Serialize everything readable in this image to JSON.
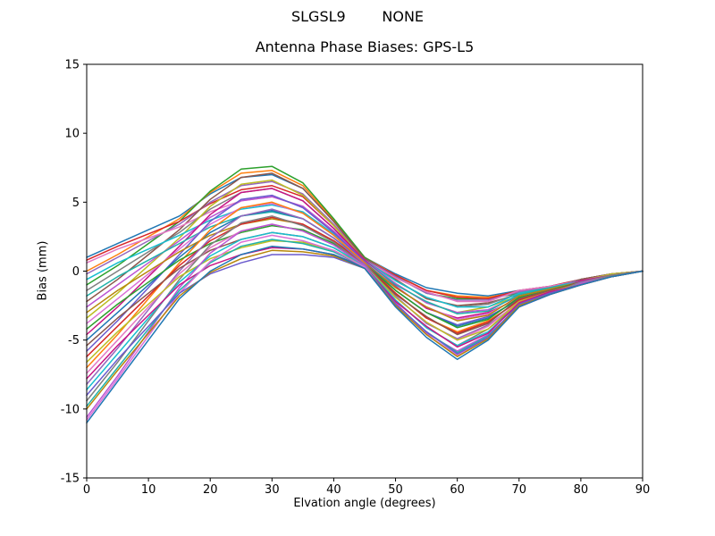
{
  "window": {
    "background": "#ffffff"
  },
  "chart_data": {
    "type": "line",
    "suptitle": "SLGSL9        NONE",
    "title": "Antenna Phase Biases: GPS-L5",
    "xlabel": "Elvation angle (degrees)",
    "ylabel": "Bias (mm)",
    "xlim": [
      0,
      90
    ],
    "ylim": [
      -15,
      15
    ],
    "xticks": [
      0,
      10,
      20,
      30,
      40,
      50,
      60,
      70,
      80,
      90
    ],
    "yticks": [
      -15,
      -10,
      -5,
      0,
      5,
      10,
      15
    ],
    "grid": false,
    "legend": "none",
    "x": [
      0,
      5,
      10,
      15,
      20,
      25,
      30,
      35,
      40,
      45,
      50,
      55,
      60,
      65,
      70,
      75,
      80,
      85,
      90
    ],
    "palette": [
      "#1f77b4",
      "#ff7f0e",
      "#2ca02c",
      "#d62728",
      "#9467bd",
      "#8c564b",
      "#e377c2",
      "#7f7f7f",
      "#bcbd22",
      "#17becf",
      "#ba55d3",
      "#c71585",
      "#20b2aa",
      "#da70d6",
      "#6a5acd",
      "#b8860b"
    ],
    "series": [
      {
        "values": [
          1.0,
          2.0,
          3.0,
          4.0,
          5.6,
          6.8,
          7.0,
          6.0,
          3.6,
          1.0,
          -0.2,
          -1.2,
          -1.6,
          -1.8,
          -1.4,
          -1.1,
          -0.6,
          -0.2,
          0.0
        ]
      },
      {
        "values": [
          0.0,
          1.2,
          2.5,
          3.8,
          5.7,
          7.1,
          7.3,
          6.2,
          3.7,
          1.0,
          -0.3,
          -1.4,
          -1.8,
          -1.9,
          -1.5,
          -1.2,
          -0.6,
          -0.2,
          0.0
        ]
      },
      {
        "values": [
          -1.0,
          0.4,
          2.0,
          3.6,
          5.8,
          7.4,
          7.6,
          6.4,
          3.8,
          1.0,
          -0.4,
          -1.6,
          -2.0,
          -2.0,
          -1.6,
          -1.2,
          -0.6,
          -0.2,
          0.0
        ]
      },
      {
        "values": [
          0.8,
          1.8,
          2.7,
          3.6,
          4.9,
          5.9,
          6.2,
          5.4,
          3.3,
          0.9,
          -0.3,
          -1.4,
          -1.9,
          -2.0,
          -1.4,
          -1.1,
          -0.6,
          -0.2,
          0.0
        ]
      },
      {
        "values": [
          -0.2,
          1.0,
          2.2,
          3.4,
          5.0,
          6.2,
          6.5,
          5.6,
          3.4,
          0.9,
          -0.4,
          -1.6,
          -2.1,
          -2.1,
          -1.5,
          -1.2,
          -0.6,
          -0.2,
          0.0
        ]
      },
      {
        "values": [
          -2.2,
          -0.6,
          1.2,
          3.0,
          5.2,
          6.8,
          7.1,
          6.0,
          3.6,
          0.9,
          -0.6,
          -2.0,
          -2.5,
          -2.3,
          -1.7,
          -1.3,
          -0.6,
          -0.2,
          0.0
        ]
      },
      {
        "values": [
          0.6,
          1.6,
          2.4,
          3.2,
          4.3,
          5.1,
          5.4,
          4.7,
          2.9,
          0.8,
          -0.5,
          -1.5,
          -2.2,
          -2.2,
          -1.4,
          -1.1,
          -0.7,
          -0.2,
          0.0
        ]
      },
      {
        "values": [
          -1.4,
          0.0,
          1.4,
          2.8,
          4.5,
          5.7,
          6.0,
          5.1,
          3.1,
          0.8,
          -0.7,
          -1.9,
          -2.6,
          -2.4,
          -1.6,
          -1.2,
          -0.7,
          -0.2,
          0.0
        ]
      },
      {
        "values": [
          -3.4,
          -1.6,
          0.4,
          2.4,
          4.7,
          6.3,
          6.6,
          5.5,
          3.3,
          0.8,
          -0.9,
          -2.3,
          -3.0,
          -2.6,
          -1.8,
          -1.3,
          -0.7,
          -0.2,
          0.0
        ]
      },
      {
        "values": [
          -0.6,
          0.6,
          1.6,
          2.6,
          3.7,
          4.5,
          4.8,
          4.3,
          2.7,
          0.8,
          -0.7,
          -1.9,
          -2.6,
          -2.6,
          -1.6,
          -1.2,
          -0.7,
          -0.3,
          0.0
        ]
      },
      {
        "values": [
          -2.6,
          -1.0,
          0.6,
          2.2,
          3.9,
          5.1,
          5.4,
          4.7,
          2.9,
          0.8,
          -0.9,
          -2.3,
          -3.0,
          -2.8,
          -1.8,
          -1.3,
          -0.7,
          -0.3,
          0.0
        ]
      },
      {
        "values": [
          -4.6,
          -2.6,
          -0.4,
          1.8,
          4.1,
          5.7,
          6.0,
          5.1,
          3.1,
          0.8,
          -1.1,
          -2.7,
          -3.4,
          -3.0,
          -2.0,
          -1.4,
          -0.7,
          -0.3,
          0.0
        ]
      },
      {
        "values": [
          -1.8,
          -0.4,
          0.8,
          2.0,
          3.2,
          4.0,
          4.3,
          3.8,
          2.4,
          0.7,
          -1.0,
          -2.2,
          -3.1,
          -2.9,
          -1.7,
          -1.2,
          -0.8,
          -0.3,
          0.0
        ]
      },
      {
        "values": [
          -3.8,
          -2.0,
          -0.2,
          1.6,
          3.4,
          4.6,
          4.9,
          4.2,
          2.6,
          0.7,
          -1.2,
          -2.6,
          -3.5,
          -3.1,
          -1.9,
          -1.3,
          -0.8,
          -0.3,
          0.0
        ]
      },
      {
        "values": [
          -5.8,
          -3.6,
          -1.2,
          1.2,
          3.6,
          5.2,
          5.5,
          4.6,
          2.8,
          0.7,
          -1.4,
          -3.0,
          -3.9,
          -3.3,
          -2.1,
          -1.4,
          -0.8,
          -0.3,
          0.0
        ]
      },
      {
        "values": [
          -3.0,
          -1.4,
          0.0,
          1.4,
          2.6,
          3.4,
          3.8,
          3.4,
          2.2,
          0.6,
          -1.2,
          -2.6,
          -3.6,
          -3.2,
          -1.8,
          -1.3,
          -0.8,
          -0.3,
          0.0
        ]
      },
      {
        "values": [
          -5.0,
          -3.0,
          -1.0,
          1.0,
          2.8,
          4.0,
          4.4,
          3.8,
          2.4,
          0.6,
          -1.4,
          -3.0,
          -4.0,
          -3.4,
          -2.0,
          -1.4,
          -0.8,
          -0.3,
          0.0
        ]
      },
      {
        "values": [
          -7.0,
          -4.6,
          -2.0,
          0.6,
          3.0,
          4.6,
          5.0,
          4.2,
          2.6,
          0.6,
          -1.6,
          -3.4,
          -4.4,
          -3.6,
          -2.2,
          -1.5,
          -0.8,
          -0.3,
          0.0
        ]
      },
      {
        "values": [
          -4.2,
          -2.4,
          -0.8,
          0.8,
          2.0,
          2.8,
          3.3,
          3.0,
          2.0,
          0.5,
          -1.4,
          -3.0,
          -4.1,
          -3.5,
          -1.9,
          -1.4,
          -0.8,
          -0.3,
          0.0
        ]
      },
      {
        "values": [
          -6.2,
          -4.0,
          -1.8,
          0.4,
          2.2,
          3.4,
          3.9,
          3.4,
          2.2,
          0.5,
          -1.6,
          -3.4,
          -4.5,
          -3.7,
          -2.1,
          -1.5,
          -0.8,
          -0.3,
          0.0
        ]
      },
      {
        "values": [
          -8.2,
          -5.6,
          -2.8,
          0.0,
          2.4,
          4.0,
          4.5,
          3.8,
          2.4,
          0.5,
          -1.8,
          -3.8,
          -4.9,
          -3.9,
          -2.3,
          -1.6,
          -0.8,
          -0.3,
          0.0
        ]
      },
      {
        "values": [
          -5.4,
          -3.4,
          -1.6,
          0.2,
          1.5,
          2.3,
          2.8,
          2.5,
          1.7,
          0.4,
          -1.7,
          -3.3,
          -4.6,
          -3.8,
          -2.0,
          -1.4,
          -0.9,
          -0.3,
          0.0
        ]
      },
      {
        "values": [
          -7.4,
          -5.0,
          -2.6,
          -0.2,
          1.7,
          2.9,
          3.4,
          2.9,
          1.9,
          0.4,
          -1.9,
          -3.7,
          -5.0,
          -4.0,
          -2.2,
          -1.5,
          -0.9,
          -0.3,
          0.0
        ]
      },
      {
        "values": [
          -9.4,
          -6.6,
          -3.6,
          -0.6,
          1.9,
          3.5,
          4.0,
          3.3,
          2.1,
          0.4,
          -2.1,
          -4.1,
          -5.4,
          -4.2,
          -2.4,
          -1.6,
          -0.9,
          -0.3,
          0.0
        ]
      },
      {
        "values": [
          -6.6,
          -4.4,
          -2.4,
          -0.4,
          0.9,
          1.7,
          2.2,
          2.1,
          1.5,
          0.4,
          -1.9,
          -3.7,
          -5.0,
          -4.2,
          -2.2,
          -1.5,
          -0.9,
          -0.4,
          0.0
        ]
      },
      {
        "values": [
          -8.6,
          -6.0,
          -3.4,
          -0.8,
          1.1,
          2.3,
          2.8,
          2.5,
          1.7,
          0.4,
          -2.1,
          -4.1,
          -5.4,
          -4.4,
          -2.4,
          -1.6,
          -0.9,
          -0.4,
          0.0
        ]
      },
      {
        "values": [
          -10.6,
          -7.6,
          -4.4,
          -1.2,
          1.3,
          2.9,
          3.4,
          2.9,
          1.9,
          0.4,
          -2.3,
          -4.5,
          -5.8,
          -4.6,
          -2.6,
          -1.7,
          -0.9,
          -0.4,
          0.0
        ]
      },
      {
        "values": [
          -7.8,
          -5.4,
          -3.2,
          -1.0,
          0.4,
          1.2,
          1.7,
          1.6,
          1.2,
          0.3,
          -2.2,
          -4.0,
          -5.5,
          -4.5,
          -2.3,
          -1.5,
          -1.0,
          -0.4,
          0.0
        ]
      },
      {
        "values": [
          -9.8,
          -7.0,
          -4.2,
          -1.4,
          0.6,
          1.8,
          2.3,
          2.0,
          1.4,
          0.3,
          -2.4,
          -4.4,
          -5.9,
          -4.7,
          -2.5,
          -1.6,
          -1.0,
          -0.4,
          0.0
        ]
      },
      {
        "values": [
          -10.8,
          -7.8,
          -4.7,
          -1.6,
          0.7,
          2.1,
          2.6,
          2.2,
          1.5,
          0.3,
          -2.5,
          -4.6,
          -6.1,
          -4.8,
          -2.6,
          -1.7,
          -1.0,
          -0.4,
          0.0
        ]
      },
      {
        "values": [
          -9.0,
          -6.4,
          -4.0,
          -1.6,
          -0.2,
          0.6,
          1.2,
          1.2,
          1.0,
          0.2,
          -2.4,
          -4.4,
          -6.0,
          -4.8,
          -2.4,
          -1.6,
          -1.0,
          -0.4,
          0.0
        ]
      },
      {
        "values": [
          -10.0,
          -7.2,
          -4.5,
          -1.8,
          -0.1,
          0.9,
          1.5,
          1.4,
          1.1,
          0.2,
          -2.5,
          -4.6,
          -6.2,
          -4.9,
          -2.5,
          -1.7,
          -1.0,
          -0.4,
          0.0
        ]
      },
      {
        "values": [
          -11.0,
          -8.0,
          -5.0,
          -2.0,
          0.0,
          1.2,
          1.8,
          1.6,
          1.2,
          0.2,
          -2.6,
          -4.8,
          -6.4,
          -5.0,
          -2.6,
          -1.7,
          -1.0,
          -0.4,
          0.0
        ]
      }
    ]
  }
}
